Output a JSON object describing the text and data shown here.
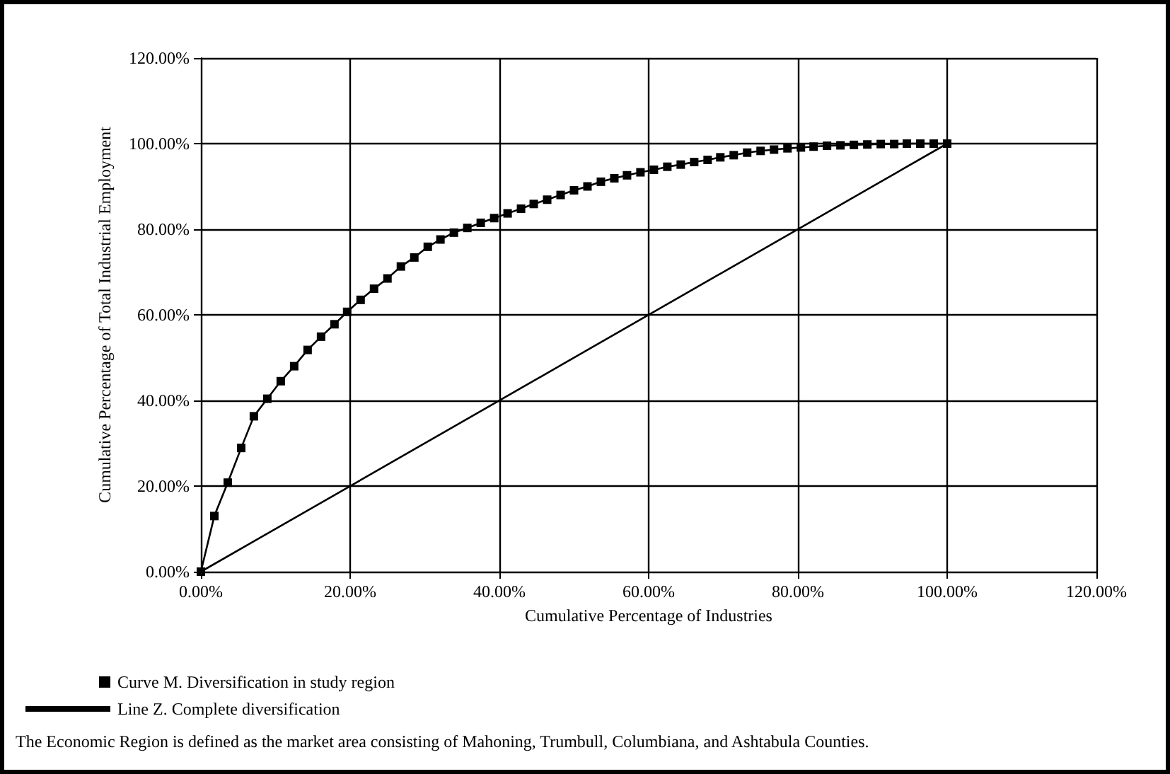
{
  "chart_data": {
    "type": "line",
    "xlabel": "Cumulative Percentage of Industries",
    "ylabel": "Cumulative Percentage of Total Industrial Employment",
    "series": [
      {
        "name": "Curve M. Diversification in study region",
        "color": "#000000",
        "marker": "square",
        "x": [
          0,
          1.8,
          3.6,
          5.4,
          7.1,
          8.9,
          10.7,
          12.5,
          14.3,
          16.1,
          17.9,
          19.6,
          21.4,
          23.2,
          25.0,
          26.8,
          28.6,
          30.4,
          32.1,
          33.9,
          35.7,
          37.5,
          39.3,
          41.1,
          42.9,
          44.6,
          46.4,
          48.2,
          50.0,
          51.8,
          53.6,
          55.4,
          57.1,
          58.9,
          60.7,
          62.5,
          64.3,
          66.1,
          67.9,
          69.6,
          71.4,
          73.2,
          75.0,
          76.8,
          78.6,
          80.4,
          82.1,
          83.9,
          85.7,
          87.5,
          89.3,
          91.1,
          92.9,
          94.6,
          96.4,
          98.2,
          100
        ],
        "values": [
          0,
          13.0,
          20.8,
          28.9,
          36.3,
          40.4,
          44.5,
          48.0,
          51.8,
          54.9,
          57.8,
          60.7,
          63.5,
          66.1,
          68.5,
          71.3,
          73.4,
          75.9,
          77.6,
          79.2,
          80.3,
          81.5,
          82.6,
          83.7,
          84.8,
          85.9,
          86.9,
          88.0,
          89.1,
          90.0,
          91.1,
          91.9,
          92.6,
          93.3,
          93.9,
          94.6,
          95.1,
          95.7,
          96.2,
          96.8,
          97.3,
          97.9,
          98.3,
          98.6,
          98.9,
          99.1,
          99.3,
          99.5,
          99.6,
          99.7,
          99.8,
          99.9,
          99.9,
          100,
          100,
          100,
          100
        ]
      },
      {
        "name": "Line Z. Complete diversification",
        "color": "#000000",
        "marker": "none",
        "x": [
          0,
          100
        ],
        "values": [
          0,
          100
        ]
      }
    ],
    "xlim": [
      0,
      120
    ],
    "ylim": [
      0,
      120
    ],
    "xticks": [
      {
        "value": 0,
        "label": "0.00%"
      },
      {
        "value": 20,
        "label": "20.00%"
      },
      {
        "value": 40,
        "label": "40.00%"
      },
      {
        "value": 60,
        "label": "60.00%"
      },
      {
        "value": 80,
        "label": "80.00%"
      },
      {
        "value": 100,
        "label": "100.00%"
      },
      {
        "value": 120,
        "label": "120.00%"
      }
    ],
    "yticks": [
      {
        "value": 0,
        "label": "0.00%"
      },
      {
        "value": 20,
        "label": "20.00%"
      },
      {
        "value": 40,
        "label": "40.00%"
      },
      {
        "value": 60,
        "label": "60.00%"
      },
      {
        "value": 80,
        "label": "80.00%"
      },
      {
        "value": 100,
        "label": "100.00%"
      },
      {
        "value": 120,
        "label": "120.00%"
      }
    ],
    "grid": true,
    "legend": "bottom left",
    "line_style": "solid",
    "annotations": [
      "The Economic Region is defined as the market area consisting of Mahoning, Trumbull, Columbiana, and Ashtabula Counties."
    ]
  }
}
